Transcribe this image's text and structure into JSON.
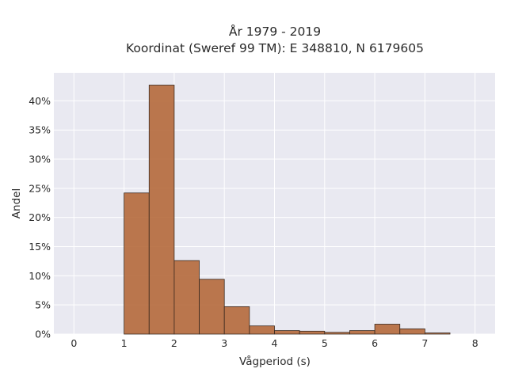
{
  "chart_data": {
    "type": "bar",
    "title_line1": "År 1979 - 2019",
    "title_line2": "Koordinat (Sweref 99 TM): E 348810, N 6179605",
    "xlabel": "Vågperiod (s)",
    "ylabel": "Andel",
    "bin_width": 0.5,
    "x": [
      1.0,
      1.5,
      2.0,
      2.5,
      3.0,
      3.5,
      4.0,
      4.5,
      5.0,
      5.5,
      6.0,
      6.5,
      7.0
    ],
    "values": [
      24.2,
      42.7,
      12.6,
      9.4,
      4.7,
      1.4,
      0.6,
      0.5,
      0.3,
      0.6,
      1.7,
      0.9,
      0.2
    ],
    "xlim": [
      -0.4,
      8.4
    ],
    "ylim": [
      0,
      44.8
    ],
    "xticks": [
      "0",
      "1",
      "2",
      "3",
      "4",
      "5",
      "6",
      "7",
      "8"
    ],
    "yticks": [
      "0%",
      "5%",
      "10%",
      "15%",
      "20%",
      "25%",
      "30%",
      "35%",
      "40%"
    ],
    "grid": true,
    "colors": {
      "bar_fill": "#b5693b",
      "bar_stroke": "#3a2a20",
      "plot_bg": "#e9e9f1",
      "grid": "#ffffff"
    }
  }
}
